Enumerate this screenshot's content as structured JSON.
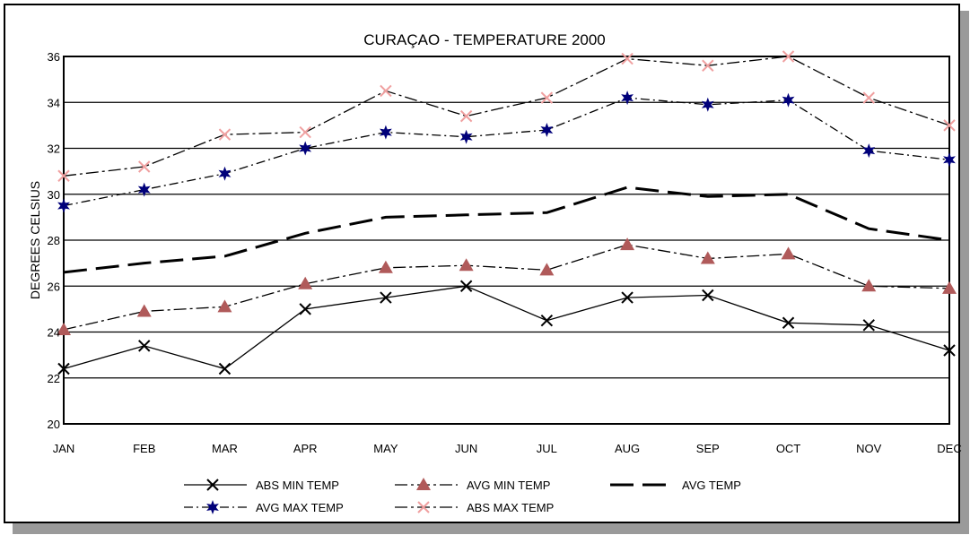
{
  "chart_data": {
    "type": "line",
    "title": "CURAÇAO - TEMPERATURE 2000",
    "xlabel": "",
    "ylabel": "DEGREES CELSIUS",
    "categories": [
      "JAN",
      "FEB",
      "MAR",
      "APR",
      "MAY",
      "JUN",
      "JUL",
      "AUG",
      "SEP",
      "OCT",
      "NOV",
      "DEC"
    ],
    "ylim": [
      20,
      36
    ],
    "yticks": [
      "20",
      "22",
      "24",
      "26",
      "28",
      "30",
      "32",
      "34",
      "36"
    ],
    "grid": true,
    "legend_position": "bottom",
    "series": [
      {
        "name": "ABS MIN TEMP",
        "color": "#000000",
        "marker": "x-marker",
        "values": [
          22.4,
          23.4,
          22.4,
          25.0,
          25.5,
          26.0,
          24.5,
          25.5,
          25.6,
          24.4,
          24.3,
          23.2
        ]
      },
      {
        "name": "AVG MIN TEMP",
        "color": "#b05a5a",
        "marker": "triangle-marker",
        "values": [
          24.1,
          24.9,
          25.1,
          26.1,
          26.8,
          26.9,
          26.7,
          27.8,
          27.2,
          27.4,
          26.0,
          25.9
        ]
      },
      {
        "name": "AVG TEMP",
        "color": "#000000",
        "marker": "none",
        "values": [
          26.6,
          27.0,
          27.3,
          28.3,
          29.0,
          29.1,
          29.2,
          30.3,
          29.9,
          30.0,
          28.5,
          28.0
        ]
      },
      {
        "name": "AVG MAX TEMP",
        "color": "#00007a",
        "marker": "star-marker",
        "values": [
          29.5,
          30.2,
          30.9,
          32.0,
          32.7,
          32.5,
          32.8,
          34.2,
          33.9,
          34.1,
          31.9,
          31.5
        ]
      },
      {
        "name": "ABS MAX TEMP",
        "color": "#f0a0a0",
        "marker": "x-marker",
        "values": [
          30.8,
          31.2,
          32.6,
          32.7,
          34.5,
          33.4,
          34.2,
          35.9,
          35.6,
          36.0,
          34.2,
          33.0
        ]
      }
    ]
  }
}
